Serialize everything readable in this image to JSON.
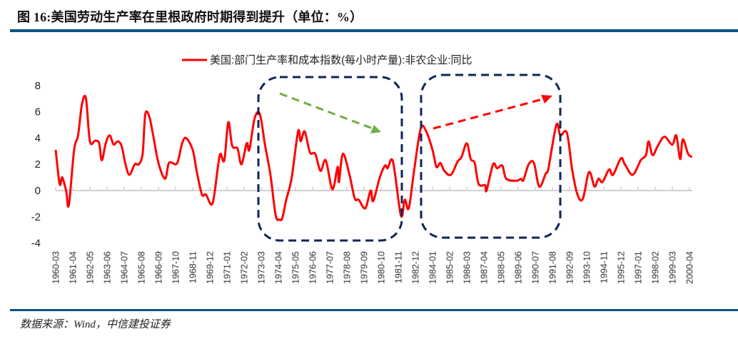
{
  "header": {
    "title": "图 16:美国劳动生产率在里根政府时期得到提升（单位：%）"
  },
  "footer": {
    "source": "数据来源：Wind，中信建投证券"
  },
  "colors": {
    "series": "#ff0000",
    "rule": "#0b5283",
    "box": "#0d2657",
    "arrow_down": "#70ad47",
    "arrow_up": "#ff0000",
    "axis": "#d0d0d0"
  },
  "chart_data": {
    "type": "line",
    "title": "",
    "xlabel": "",
    "ylabel": "",
    "ylim": [
      -4,
      8
    ],
    "yticks": [
      8,
      6,
      4,
      2,
      0,
      -2,
      -4
    ],
    "grid": false,
    "legend": "top-center",
    "x_tick_labels": [
      "1960-03",
      "1961-04",
      "1962-05",
      "1963-06",
      "1964-07",
      "1965-08",
      "1966-09",
      "1967-10",
      "1968-11",
      "1969-12",
      "1971-01",
      "1972-02",
      "1973-03",
      "1974-04",
      "1975-05",
      "1976-06",
      "1977-07",
      "1978-08",
      "1979-09",
      "1980-10",
      "1981-11",
      "1982-12",
      "1984-01",
      "1985-02",
      "1986-03",
      "1987-04",
      "1988-05",
      "1989-06",
      "1990-07",
      "1991-08",
      "1992-09",
      "1993-10",
      "1994-11",
      "1995-12",
      "1997-01",
      "1998-02",
      "1999-03",
      "2000-04"
    ],
    "annotations": [
      "dashed box 1973-1982 with downward green dashed arrow",
      "dashed box 1983-1992 with upward red dashed arrow"
    ],
    "series": [
      {
        "name": "美国:部门生产率和成本指数(每小时产量):非农企业:同比",
        "points": [
          [
            "1960-03",
            3.1
          ],
          [
            "1960-06",
            0.5
          ],
          [
            "1960-08",
            1.0
          ],
          [
            "1960-11",
            -0.05
          ],
          [
            "1961-01",
            -1.1
          ],
          [
            "1961-05",
            3.1
          ],
          [
            "1961-08",
            4.2
          ],
          [
            "1961-11",
            6.6
          ],
          [
            "1962-02",
            7.0
          ],
          [
            "1962-05",
            3.75
          ],
          [
            "1962-09",
            3.8
          ],
          [
            "1962-12",
            3.6
          ],
          [
            "1963-02",
            2.3
          ],
          [
            "1963-05",
            3.6
          ],
          [
            "1963-08",
            4.2
          ],
          [
            "1963-11",
            3.5
          ],
          [
            "1964-02",
            3.75
          ],
          [
            "1964-05",
            3.4
          ],
          [
            "1964-08",
            2.0
          ],
          [
            "1964-11",
            1.2
          ],
          [
            "1965-03",
            2.0
          ],
          [
            "1965-06",
            2.0
          ],
          [
            "1965-09",
            2.8
          ],
          [
            "1965-11",
            5.8
          ],
          [
            "1966-02",
            5.65
          ],
          [
            "1966-05",
            4.2
          ],
          [
            "1966-09",
            2.1
          ],
          [
            "1967-02",
            0.9
          ],
          [
            "1967-05",
            2.1
          ],
          [
            "1967-10",
            2.0
          ],
          [
            "1967-12",
            2.3
          ],
          [
            "1968-03",
            3.6
          ],
          [
            "1968-06",
            4.0
          ],
          [
            "1968-11",
            3.1
          ],
          [
            "1969-02",
            1.5
          ],
          [
            "1969-06",
            -0.3
          ],
          [
            "1969-09",
            -0.3
          ],
          [
            "1970-02",
            -1.0
          ],
          [
            "1970-06",
            1.7
          ],
          [
            "1970-08",
            2.8
          ],
          [
            "1970-11",
            2.3
          ],
          [
            "1971-02",
            5.2
          ],
          [
            "1971-05",
            3.4
          ],
          [
            "1971-09",
            3.2
          ],
          [
            "1971-12",
            2.0
          ],
          [
            "1972-04",
            3.6
          ],
          [
            "1972-06",
            3.1
          ],
          [
            "1972-10",
            5.5
          ],
          [
            "1973-02",
            5.8
          ],
          [
            "1973-06",
            3.4
          ],
          [
            "1973-10",
            1.2
          ],
          [
            "1974-02",
            -1.9
          ],
          [
            "1974-05",
            -2.2
          ],
          [
            "1974-07",
            -2.1
          ],
          [
            "1974-10",
            -0.7
          ],
          [
            "1975-02",
            0.9
          ],
          [
            "1975-07",
            4.5
          ],
          [
            "1975-09",
            3.75
          ],
          [
            "1975-12",
            4.5
          ],
          [
            "1976-04",
            2.9
          ],
          [
            "1976-08",
            2.8
          ],
          [
            "1976-12",
            1.5
          ],
          [
            "1977-04",
            2.3
          ],
          [
            "1977-09",
            0.1
          ],
          [
            "1978-01",
            1.8
          ],
          [
            "1978-02",
            0.65
          ],
          [
            "1978-05",
            2.8
          ],
          [
            "1978-10",
            1.2
          ],
          [
            "1979-02",
            -0.6
          ],
          [
            "1979-05",
            -0.7
          ],
          [
            "1979-10",
            -1.35
          ],
          [
            "1980-02",
            0.0
          ],
          [
            "1980-04",
            -0.8
          ],
          [
            "1980-09",
            1.0
          ],
          [
            "1981-01",
            1.9
          ],
          [
            "1981-03",
            1.7
          ],
          [
            "1981-07",
            2.2
          ],
          [
            "1982-01",
            -1.9
          ],
          [
            "1982-04",
            -0.7
          ],
          [
            "1982-07",
            -1.35
          ],
          [
            "1982-11",
            1.5
          ],
          [
            "1983-04",
            4.7
          ],
          [
            "1983-08",
            4.55
          ],
          [
            "1984-01",
            3.1
          ],
          [
            "1984-04",
            1.8
          ],
          [
            "1984-07",
            2.1
          ],
          [
            "1984-10",
            1.5
          ],
          [
            "1985-03",
            1.2
          ],
          [
            "1985-08",
            2.2
          ],
          [
            "1985-11",
            2.55
          ],
          [
            "1986-03",
            3.6
          ],
          [
            "1986-06",
            2.4
          ],
          [
            "1986-09",
            2.1
          ],
          [
            "1986-12",
            0.5
          ],
          [
            "1987-05",
            0.4
          ],
          [
            "1987-06",
            0.0
          ],
          [
            "1987-11",
            2.0
          ],
          [
            "1988-02",
            1.7
          ],
          [
            "1988-06",
            1.9
          ],
          [
            "1988-09",
            0.9
          ],
          [
            "1989-05",
            0.75
          ],
          [
            "1989-08",
            0.9
          ],
          [
            "1989-10",
            0.8
          ],
          [
            "1990-02",
            2.0
          ],
          [
            "1990-06",
            2.1
          ],
          [
            "1990-10",
            0.3
          ],
          [
            "1991-03",
            1.3
          ],
          [
            "1991-05",
            1.7
          ],
          [
            "1991-11",
            5.0
          ],
          [
            "1992-02",
            4.2
          ],
          [
            "1992-07",
            4.4
          ],
          [
            "1992-11",
            1.6
          ],
          [
            "1993-03",
            -0.3
          ],
          [
            "1993-07",
            -0.65
          ],
          [
            "1993-11",
            1.2
          ],
          [
            "1994-01",
            1.3
          ],
          [
            "1994-04",
            0.3
          ],
          [
            "1994-07",
            0.9
          ],
          [
            "1994-10",
            0.65
          ],
          [
            "1995-03",
            1.6
          ],
          [
            "1995-06",
            1.2
          ],
          [
            "1995-12",
            2.45
          ],
          [
            "1996-03",
            2.0
          ],
          [
            "1996-09",
            1.2
          ],
          [
            "1997-03",
            2.3
          ],
          [
            "1997-07",
            2.7
          ],
          [
            "1997-09",
            3.75
          ],
          [
            "1997-12",
            2.7
          ],
          [
            "1998-04",
            3.4
          ],
          [
            "1998-09",
            4.1
          ],
          [
            "1999-03",
            3.5
          ],
          [
            "1999-06",
            4.2
          ],
          [
            "1999-09",
            2.4
          ],
          [
            "1999-11",
            3.9
          ],
          [
            "2000-03",
            2.8
          ],
          [
            "2000-06",
            2.55
          ]
        ]
      }
    ]
  }
}
